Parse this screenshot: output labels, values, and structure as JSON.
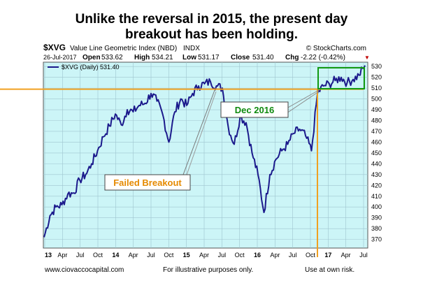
{
  "headline": {
    "line1": "Unlike the reversal in 2015, the present day",
    "line2": "breakout has been holding."
  },
  "header": {
    "symbol": "$XVG",
    "name": "Value Line Geometric Index (NBD)",
    "exchange": "INDX",
    "source": "© StockCharts.com",
    "date": "26-Jul-2017",
    "open_label": "Open",
    "open": "533.62",
    "high_label": "High",
    "high": "534.21",
    "low_label": "Low",
    "low": "531.17",
    "close_label": "Close",
    "close": "531.40",
    "chg_label": "Chg",
    "chg": "-2.22 (-0.42%)",
    "chg_arrow": "▼"
  },
  "legend": {
    "label": "$XVG (Daily) 531.40"
  },
  "annotations": {
    "dec2016": "Dec 2016",
    "failed": "Failed Breakout"
  },
  "footer": {
    "left": "www.ciovaccocapital.com",
    "middle": "For illustrative purposes only.",
    "right": "Use at own risk."
  },
  "colors": {
    "plot_bg": "#ccf5f7",
    "grid": "#9fc5cf",
    "series": "#1c1a8c",
    "breakout_line": "#f0a020",
    "box": "#119a11",
    "dec_text": "#0e8a0e",
    "failed_text": "#e58a00"
  },
  "chart_data": {
    "type": "line",
    "title": "$XVG Value Line Geometric Index (NBD) INDX",
    "series": [
      {
        "name": "$XVG (Daily) 531.40",
        "x": [
          "2013-01",
          "2013-02",
          "2013-03",
          "2013-04",
          "2013-05",
          "2013-06",
          "2013-07",
          "2013-08",
          "2013-09",
          "2013-10",
          "2013-11",
          "2013-12",
          "2014-01",
          "2014-02",
          "2014-03",
          "2014-04",
          "2014-05",
          "2014-06",
          "2014-07",
          "2014-08",
          "2014-09",
          "2014-10",
          "2014-11",
          "2014-12",
          "2015-01",
          "2015-02",
          "2015-03",
          "2015-04",
          "2015-05",
          "2015-06",
          "2015-07",
          "2015-08",
          "2015-09",
          "2015-10",
          "2015-11",
          "2015-12",
          "2016-01",
          "2016-02",
          "2016-03",
          "2016-04",
          "2016-05",
          "2016-06",
          "2016-07",
          "2016-08",
          "2016-09",
          "2016-10",
          "2016-11",
          "2016-12",
          "2017-01",
          "2017-02",
          "2017-03",
          "2017-04",
          "2017-05",
          "2017-06",
          "2017-07"
        ],
        "values": [
          372,
          392,
          400,
          402,
          412,
          413,
          425,
          430,
          440,
          452,
          465,
          475,
          486,
          476,
          490,
          488,
          494,
          496,
          505,
          498,
          485,
          460,
          488,
          500,
          494,
          505,
          512,
          514,
          516,
          512,
          510,
          474,
          458,
          484,
          478,
          450,
          430,
          395,
          430,
          444,
          452,
          458,
          468,
          472,
          466,
          452,
          505,
          512,
          514,
          517,
          520,
          515,
          518,
          522,
          531
        ]
      }
    ],
    "x_ticks": [
      "13",
      "Apr",
      "Jul",
      "Oct",
      "14",
      "Apr",
      "Jul",
      "Oct",
      "15",
      "Apr",
      "Jul",
      "Oct",
      "16",
      "Apr",
      "Jul",
      "Oct",
      "17",
      "Apr",
      "Jul"
    ],
    "y_ticks": [
      370,
      380,
      390,
      400,
      410,
      420,
      430,
      440,
      450,
      460,
      470,
      480,
      490,
      500,
      510,
      520,
      530
    ],
    "ylim": [
      362,
      534
    ],
    "breakout_level": 509,
    "grid": true,
    "legend_position": "top-left"
  }
}
